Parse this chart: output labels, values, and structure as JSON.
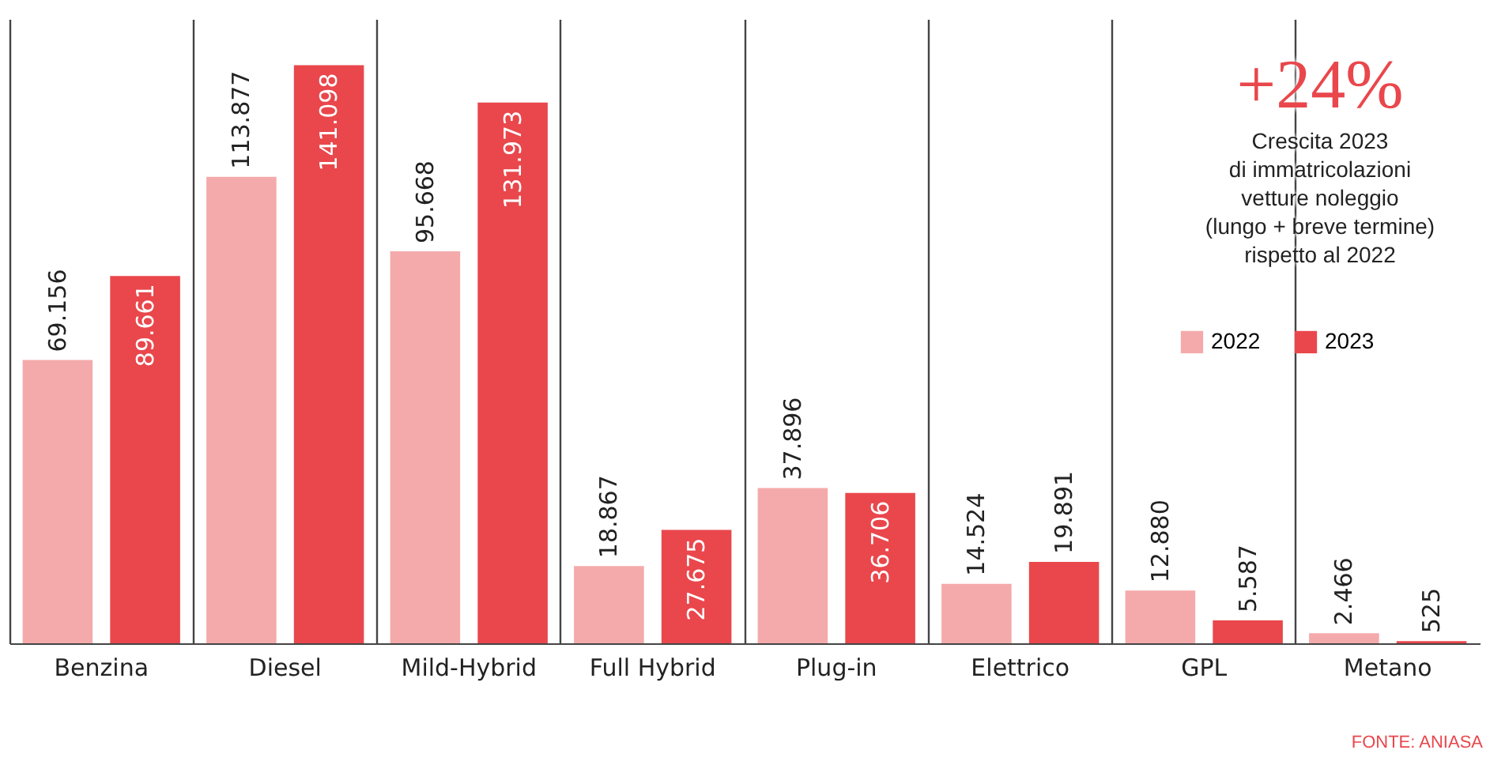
{
  "chart_data": {
    "type": "bar",
    "categories": [
      "Benzina",
      "Diesel",
      "Mild-Hybrid",
      "Full Hybrid",
      "Plug-in",
      "Elettrico",
      "GPL",
      "Metano"
    ],
    "series": [
      {
        "name": "2022",
        "color": "#f4aaab",
        "values": [
          69156,
          113877,
          95668,
          18867,
          37896,
          14524,
          12880,
          2466
        ],
        "value_labels": [
          "69.156",
          "113.877",
          "95.668",
          "18.867",
          "37.896",
          "14.524",
          "12.880",
          "2.466"
        ]
      },
      {
        "name": "2023",
        "color": "#e9474c",
        "values": [
          89661,
          141098,
          131973,
          27675,
          36706,
          19891,
          5587,
          525
        ],
        "value_labels": [
          "89.661",
          "141.098",
          "131.973",
          "27.675",
          "36.706",
          "19.891",
          "5.587",
          "525"
        ]
      }
    ],
    "annotations": [
      "+24%",
      "Crescita 2023\ndi immatricolazioni\nvetture noleggio\n(lungo + breve termine)\nrispetto al 2022",
      "FONTE: ANIASA"
    ],
    "grid": "x",
    "legend": "top right"
  }
}
